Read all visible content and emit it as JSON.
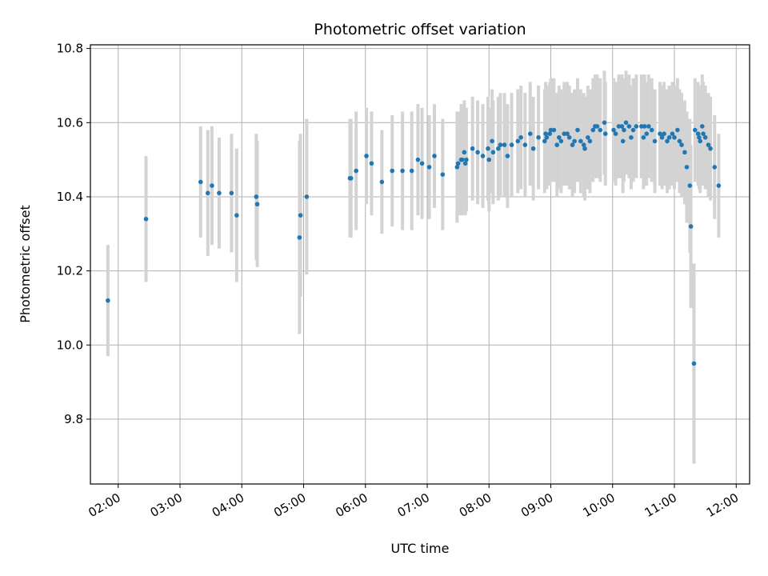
{
  "chart_data": {
    "type": "scatter",
    "title": "Photometric offset variation",
    "xlabel": "UTC time",
    "ylabel": "Photometric offset",
    "x_ticks": [
      "02:00",
      "03:00",
      "04:00",
      "05:00",
      "06:00",
      "07:00",
      "08:00",
      "09:00",
      "10:00",
      "11:00",
      "12:00"
    ],
    "y_ticks": [
      "9.8",
      "10.0",
      "10.2",
      "10.4",
      "10.6",
      "10.8"
    ],
    "xlim": [
      "01:33",
      "12:13"
    ],
    "ylim": [
      9.625,
      10.81
    ],
    "grid": true,
    "colors": {
      "point": "#1f77b4",
      "errorbar": "#d3d3d3",
      "grid": "#b0b0b0"
    },
    "series": [
      {
        "x": [
          "01:50",
          "02:27",
          "03:20",
          "03:27",
          "03:31",
          "03:38",
          "03:50",
          "03:55",
          "04:14",
          "04:15",
          "04:56",
          "04:57",
          "05:03",
          "05:45",
          "05:46",
          "05:51",
          "06:01",
          "06:06",
          "06:16",
          "06:26",
          "06:36",
          "06:45",
          "06:51",
          "06:55",
          "07:02",
          "07:07",
          "07:15",
          "07:29",
          "07:30",
          "07:33",
          "07:34",
          "07:36",
          "07:37",
          "07:38",
          "07:44",
          "07:49",
          "07:54",
          "07:59",
          "08:00",
          "08:03",
          "08:04",
          "08:09",
          "08:11",
          "08:15",
          "08:18",
          "08:22",
          "08:28",
          "08:31",
          "08:35",
          "08:40",
          "08:43",
          "08:48",
          "08:54",
          "08:55",
          "08:56",
          "08:59",
          "09:00",
          "09:03",
          "09:06",
          "09:08",
          "09:10",
          "09:13",
          "09:16",
          "09:18",
          "09:21",
          "09:23",
          "09:26",
          "09:29",
          "09:32",
          "09:33",
          "09:36",
          "09:38",
          "09:41",
          "09:43",
          "09:45",
          "09:48",
          "09:52",
          "09:53",
          "10:01",
          "10:03",
          "10:06",
          "10:09",
          "10:10",
          "10:11",
          "10:13",
          "10:16",
          "10:18",
          "10:20",
          "10:23",
          "10:28",
          "10:30",
          "10:31",
          "10:33",
          "10:35",
          "10:38",
          "10:41",
          "10:46",
          "10:48",
          "10:50",
          "10:53",
          "10:55",
          "10:58",
          "11:00",
          "11:03",
          "11:05",
          "11:07",
          "11:10",
          "11:12",
          "11:15",
          "11:16",
          "11:19",
          "11:20",
          "11:23",
          "11:24",
          "11:25",
          "11:27",
          "11:28",
          "11:30",
          "11:33",
          "11:35",
          "11:39",
          "11:43"
        ],
        "y": [
          10.12,
          10.34,
          10.44,
          10.41,
          10.43,
          10.41,
          10.41,
          10.35,
          10.4,
          10.38,
          10.29,
          10.35,
          10.4,
          10.45,
          10.45,
          10.47,
          10.51,
          10.49,
          10.44,
          10.47,
          10.47,
          10.47,
          10.5,
          10.49,
          10.48,
          10.51,
          10.46,
          10.48,
          10.49,
          10.5,
          10.5,
          10.52,
          10.49,
          10.5,
          10.53,
          10.52,
          10.51,
          10.53,
          10.5,
          10.55,
          10.52,
          10.53,
          10.54,
          10.54,
          10.51,
          10.54,
          10.55,
          10.56,
          10.54,
          10.57,
          10.53,
          10.56,
          10.55,
          10.57,
          10.56,
          10.57,
          10.58,
          10.58,
          10.54,
          10.56,
          10.55,
          10.57,
          10.57,
          10.56,
          10.54,
          10.55,
          10.58,
          10.55,
          10.54,
          10.53,
          10.56,
          10.55,
          10.58,
          10.59,
          10.59,
          10.58,
          10.6,
          10.57,
          10.58,
          10.57,
          10.59,
          10.59,
          10.55,
          10.58,
          10.6,
          10.59,
          10.56,
          10.58,
          10.59,
          10.59,
          10.56,
          10.59,
          10.57,
          10.59,
          10.58,
          10.55,
          10.57,
          10.56,
          10.57,
          10.55,
          10.56,
          10.57,
          10.56,
          10.58,
          10.55,
          10.54,
          10.52,
          10.48,
          10.43,
          10.32,
          9.95,
          10.58,
          10.57,
          10.56,
          10.55,
          10.59,
          10.57,
          10.56,
          10.54,
          10.53,
          10.48,
          10.43
        ],
        "yerr": [
          0.15,
          0.17,
          0.15,
          0.17,
          0.16,
          0.15,
          0.16,
          0.18,
          0.17,
          0.17,
          0.26,
          0.22,
          0.21,
          0.16,
          0.16,
          0.16,
          0.13,
          0.14,
          0.14,
          0.15,
          0.16,
          0.16,
          0.15,
          0.15,
          0.14,
          0.14,
          0.15,
          0.15,
          0.14,
          0.15,
          0.15,
          0.14,
          0.14,
          0.14,
          0.14,
          0.14,
          0.14,
          0.14,
          0.14,
          0.14,
          0.14,
          0.14,
          0.14,
          0.14,
          0.14,
          0.14,
          0.14,
          0.14,
          0.14,
          0.14,
          0.14,
          0.14,
          0.14,
          0.14,
          0.14,
          0.14,
          0.14,
          0.14,
          0.14,
          0.14,
          0.14,
          0.14,
          0.14,
          0.14,
          0.14,
          0.14,
          0.14,
          0.14,
          0.14,
          0.14,
          0.14,
          0.14,
          0.14,
          0.14,
          0.14,
          0.14,
          0.14,
          0.14,
          0.14,
          0.14,
          0.14,
          0.14,
          0.14,
          0.14,
          0.14,
          0.14,
          0.14,
          0.14,
          0.14,
          0.14,
          0.14,
          0.14,
          0.14,
          0.14,
          0.14,
          0.14,
          0.14,
          0.14,
          0.14,
          0.14,
          0.14,
          0.14,
          0.14,
          0.14,
          0.14,
          0.14,
          0.14,
          0.15,
          0.18,
          0.22,
          0.27,
          0.14,
          0.14,
          0.14,
          0.14,
          0.14,
          0.14,
          0.14,
          0.14,
          0.14,
          0.14,
          0.14
        ]
      }
    ]
  }
}
